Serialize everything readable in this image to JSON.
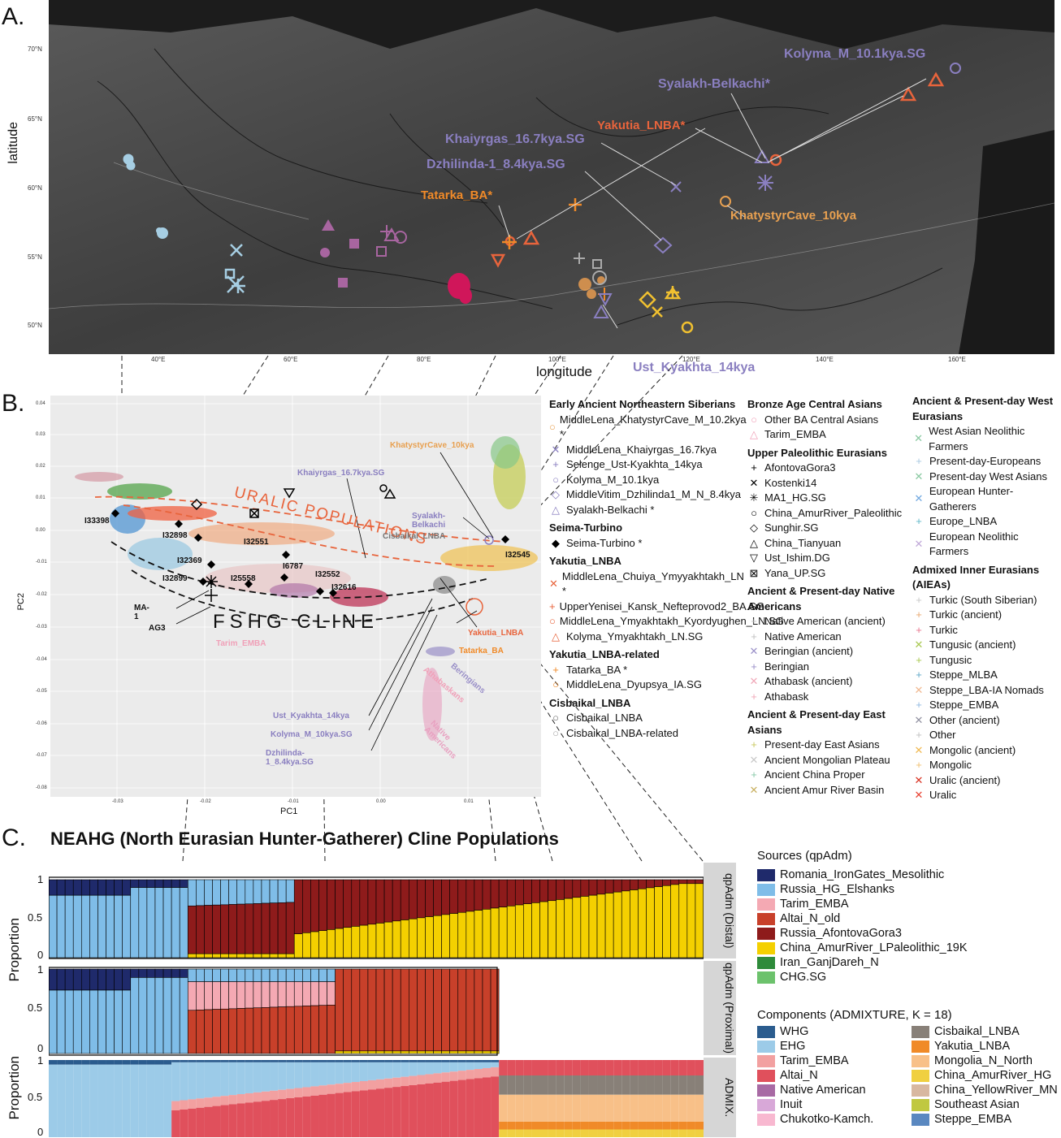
{
  "panelA": {
    "letter": "A.",
    "ylabel": "latitude",
    "xlabel": "longitude",
    "lat_ticks": [
      "70°N",
      "65°N",
      "60°N",
      "55°N",
      "50°N"
    ],
    "lon_ticks": [
      "40°E",
      "60°E",
      "80°E",
      "100°E",
      "120°E",
      "140°E",
      "160°E"
    ],
    "labels": {
      "kolyma": "Kolyma_M_10.1kya.SG",
      "syalakh": "Syalakh-Belkachi*",
      "yakutia": "Yakutia_LNBA*",
      "khaiyrgas": "Khaiyrgas_16.7kya.SG",
      "dzhilinda": "Dzhilinda-1_8.4kya.SG",
      "tatarka": "Tatarka_BA*",
      "khatystyr": "KhatystyrCave_10kya",
      "ustkyakhta": "Ust_Kyakhta_14kya"
    }
  },
  "panelB": {
    "letter": "B.",
    "ylabel": "PC2",
    "xlabel": "PC1",
    "x_ticks": [
      "-0.03",
      "-0.02",
      "-0.01",
      "0.00",
      "0.01"
    ],
    "y_ticks": [
      "0.04",
      "0.03",
      "0.02",
      "0.01",
      "0.00",
      "-0.01",
      "-0.02",
      "-0.03",
      "-0.04",
      "-0.05",
      "-0.06",
      "-0.07",
      "-0.08"
    ],
    "curve_uralic": "URALIC POPULATIONS",
    "curve_fshg": "FSHG CLINE",
    "point_labels": {
      "i33398": "I33398",
      "i32898": "I32898",
      "i32551": "I32551",
      "i32369": "I32369",
      "i6787": "I6787",
      "i32899": "I32899",
      "i25558": "I25558",
      "i32552": "I32552",
      "i32616": "I32616",
      "i32545": "I32545",
      "ma1": "MA-1",
      "ag3": "AG3",
      "tarim": "Tarim_EMBA",
      "khaiyrgas": "Khaiyrgas_16.7kya.SG",
      "khatystyr": "KhatystyrCave_10kya",
      "syalakh": "Syalakh-Belkachi",
      "cisbaikal": "Cisbaikal_LNBA",
      "yakutia": "Yakutia_LNBA",
      "tatarka": "Tatarka_BA",
      "beringians": "Beringians",
      "athabaskans": "Athabaskans",
      "native": "Native Americans",
      "ustk": "Ust_Kyakhta_14kya",
      "kolyma": "Kolyma_M_10kya.SG",
      "dzhilinda": "Dzhilinda-1_8.4kya.SG"
    }
  },
  "legend_col1": [
    {
      "heading": "Early Ancient Northeastern Siberians",
      "items": [
        {
          "sym": "○",
          "color": "#e8a050",
          "text": "MiddleLena_KhatystyrCave_M_10.2kya *"
        },
        {
          "sym": "✕",
          "color": "#8a7fc0",
          "text": "MiddleLena_Khaiyrgas_16.7kya"
        },
        {
          "sym": "+",
          "color": "#8a7fc0",
          "text": "Selenge_Ust-Kyakhta_14kya"
        },
        {
          "sym": "○",
          "color": "#8a7fc0",
          "text": "Kolyma_M_10.1kya"
        },
        {
          "sym": "◇",
          "color": "#8a7fc0",
          "text": "MiddleVitim_Dzhilinda1_M_N_8.4kya"
        },
        {
          "sym": "△",
          "color": "#8a7fc0",
          "text": "Syalakh-Belkachi *"
        }
      ]
    },
    {
      "heading": "Seima-Turbino",
      "items": [
        {
          "sym": "◆",
          "color": "#000000",
          "text": "Seima-Turbino *"
        }
      ]
    },
    {
      "heading": "Yakutia_LNBA",
      "items": [
        {
          "sym": "✕",
          "color": "#e8643c",
          "text": "MiddleLena_Chuiya_Ymyyakhtakh_LN *"
        },
        {
          "sym": "+",
          "color": "#e8643c",
          "text": "UpperYenisei_Kansk_Nefteprovod2_BA.SG"
        },
        {
          "sym": "○",
          "color": "#e8643c",
          "text": "MiddleLena_Ymyakhtakh_Kyordyughen_LN.SG"
        },
        {
          "sym": "△",
          "color": "#e8643c",
          "text": "Kolyma_Ymyakhtakh_LN.SG"
        }
      ]
    },
    {
      "heading": "Yakutia_LNBA-related",
      "items": [
        {
          "sym": "+",
          "color": "#f08a28",
          "text": "Tatarka_BA *"
        },
        {
          "sym": "○",
          "color": "#f08a28",
          "text": "MiddleLena_Dyupsya_IA.SG"
        }
      ]
    },
    {
      "heading": "Cisbaikal_LNBA",
      "items": [
        {
          "sym": "○",
          "color": "#666666",
          "text": "Cisbaikal_LNBA"
        },
        {
          "sym": "○",
          "color": "#aaaaaa",
          "text": "Cisbaikal_LNBA-related"
        }
      ]
    }
  ],
  "legend_col2": [
    {
      "heading": "Bronze Age Central Asians",
      "items": [
        {
          "sym": "○",
          "color": "#f0a0b8",
          "text": "Other BA Central Asians"
        },
        {
          "sym": "△",
          "color": "#f0a0b8",
          "text": "Tarim_EMBA"
        }
      ]
    },
    {
      "heading": "Upper Paleolithic Eurasians",
      "items": [
        {
          "sym": "+",
          "color": "#000000",
          "text": "AfontovaGora3"
        },
        {
          "sym": "✕",
          "color": "#000000",
          "text": "Kostenki14"
        },
        {
          "sym": "✳",
          "color": "#000000",
          "text": "MA1_HG.SG"
        },
        {
          "sym": "○",
          "color": "#000000",
          "text": "China_AmurRiver_Paleolithic"
        },
        {
          "sym": "◇",
          "color": "#000000",
          "text": "Sunghir.SG"
        },
        {
          "sym": "△",
          "color": "#000000",
          "text": "China_Tianyuan"
        },
        {
          "sym": "▽",
          "color": "#000000",
          "text": "Ust_Ishim.DG"
        },
        {
          "sym": "⊠",
          "color": "#000000",
          "text": "Yana_UP.SG"
        }
      ]
    },
    {
      "heading": "Ancient & Present-day Native Americans",
      "items": [
        {
          "sym": "+",
          "color": "#c0c0c0",
          "text": "Native American (ancient)"
        },
        {
          "sym": "+",
          "color": "#c0c0c0",
          "text": "Native American"
        },
        {
          "sym": "✕",
          "color": "#9a90c8",
          "text": "Beringian (ancient)"
        },
        {
          "sym": "+",
          "color": "#9a90c8",
          "text": "Beringian"
        },
        {
          "sym": "✕",
          "color": "#f0a8b8",
          "text": "Athabask (ancient)"
        },
        {
          "sym": "+",
          "color": "#f0a8b8",
          "text": "Athabask"
        }
      ]
    },
    {
      "heading": "Ancient & Present-day East Asians",
      "items": [
        {
          "sym": "+",
          "color": "#c8c860",
          "text": "Present-day East Asians"
        },
        {
          "sym": "✕",
          "color": "#c8c8c8",
          "text": "Ancient Mongolian Plateau"
        },
        {
          "sym": "+",
          "color": "#88c8a8",
          "text": "Ancient China Proper"
        },
        {
          "sym": "✕",
          "color": "#c8b060",
          "text": "Ancient Amur River Basin"
        }
      ]
    }
  ],
  "legend_col3": [
    {
      "heading": "Ancient & Present-day West Eurasians",
      "items": [
        {
          "sym": "✕",
          "color": "#88c8a0",
          "text": "West Asian Neolithic Farmers"
        },
        {
          "sym": "+",
          "color": "#a8c8e0",
          "text": "Present-day-Europeans"
        },
        {
          "sym": "✕",
          "color": "#88c8a0",
          "text": "Present-day West Asians"
        },
        {
          "sym": "✕",
          "color": "#70a8e0",
          "text": "European Hunter-Gatherers"
        },
        {
          "sym": "+",
          "color": "#60b8c8",
          "text": "Europe_LNBA"
        },
        {
          "sym": "✕",
          "color": "#c0a8d8",
          "text": "European Neolithic Farmers"
        }
      ]
    },
    {
      "heading": "Admixed Inner Eurasians (AIEAs)",
      "items": [
        {
          "sym": "+",
          "color": "#c8c8c8",
          "text": "Turkic (South Siberian)"
        },
        {
          "sym": "+",
          "color": "#e8a870",
          "text": "Turkic (ancient)"
        },
        {
          "sym": "+",
          "color": "#e87890",
          "text": "Turkic"
        },
        {
          "sym": "✕",
          "color": "#a8c850",
          "text": "Tungusic (ancient)"
        },
        {
          "sym": "+",
          "color": "#a8c850",
          "text": "Tungusic"
        },
        {
          "sym": "+",
          "color": "#60a8c8",
          "text": "Steppe_MLBA"
        },
        {
          "sym": "✕",
          "color": "#f0b890",
          "text": "Steppe_LBA-IA Nomads"
        },
        {
          "sym": "+",
          "color": "#90b8e0",
          "text": "Steppe_EMBA"
        },
        {
          "sym": "✕",
          "color": "#9090a0",
          "text": "Other (ancient)"
        },
        {
          "sym": "+",
          "color": "#c0c0c0",
          "text": "Other"
        },
        {
          "sym": "✕",
          "color": "#f0b850",
          "text": "Mongolic (ancient)"
        },
        {
          "sym": "+",
          "color": "#f0c070",
          "text": "Mongolic"
        },
        {
          "sym": "✕",
          "color": "#d83020",
          "text": "Uralic (ancient)"
        },
        {
          "sym": "✕",
          "color": "#e84030",
          "text": "Uralic"
        }
      ]
    }
  ],
  "panelC": {
    "letter": "C.",
    "title": "NEAHG (North Eurasian Hunter-Gatherer) Cline Populations",
    "ylabel": "Proportion",
    "strip_distal": "qpAdm (Distal)",
    "strip_proximal": "qpAdm (Proximal)",
    "strip_admix": "ADMIX.",
    "y_ticks": [
      "1",
      "0.5",
      "0"
    ],
    "sources_title": "Sources (qpAdm)",
    "sources": [
      {
        "name": "Romania_IronGates_Mesolithic",
        "color": "#1f2a6b"
      },
      {
        "name": "Russia_HG_Elshanks",
        "color": "#7fbde8"
      },
      {
        "name": "Tarim_EMBA",
        "color": "#f4a9b3"
      },
      {
        "name": "Altai_N_old",
        "color": "#c8402a"
      },
      {
        "name": "Russia_AfontovaGora3",
        "color": "#8e1b1b"
      },
      {
        "name": "China_AmurRiver_LPaleolithic_19K",
        "color": "#f4d000"
      },
      {
        "name": "Iran_GanjDareh_N",
        "color": "#2e8b3a"
      },
      {
        "name": "CHG.SG",
        "color": "#6cc26c"
      }
    ],
    "components_title": "Components (ADMIXTURE, K = 18)",
    "components": [
      {
        "name": "WHG",
        "color": "#2b5c8e"
      },
      {
        "name": "EHG",
        "color": "#9ccbe8"
      },
      {
        "name": "Tarim_EMBA",
        "color": "#f2a0a0"
      },
      {
        "name": "Altai_N",
        "color": "#e0505c"
      },
      {
        "name": "Native American",
        "color": "#a86aa4"
      },
      {
        "name": "Inuit",
        "color": "#d8a8d8"
      },
      {
        "name": "Chukotko-Kamch.",
        "color": "#f8b8d0"
      },
      {
        "name": "Cisbaikal_LNBA",
        "color": "#888078"
      },
      {
        "name": "Yakutia_LNBA",
        "color": "#f08a28"
      },
      {
        "name": "Mongolia_N_North",
        "color": "#f8c088"
      },
      {
        "name": "China_AmurRiver_HG",
        "color": "#f0d040"
      },
      {
        "name": "China_YellowRiver_MN",
        "color": "#d8b8a0"
      },
      {
        "name": "Southeast Asian",
        "color": "#c0c840"
      },
      {
        "name": "Steppe_EMBA",
        "color": "#5a88c0"
      }
    ]
  }
}
